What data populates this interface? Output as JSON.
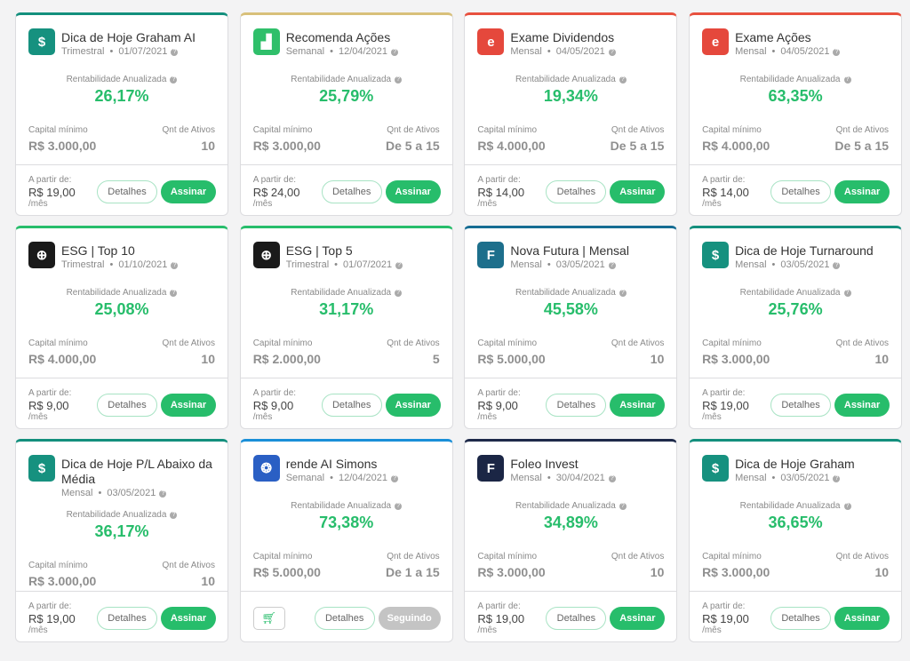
{
  "labels": {
    "rent": "Rentabilidade Anualizada",
    "capital": "Capital mínimo",
    "qnt": "Qnt de Ativos",
    "from": "A partir de:",
    "per": "/mês",
    "details": "Detalhes",
    "subscribe": "Assinar",
    "following": "Seguindo"
  },
  "cards": [
    {
      "title": "Dica de Hoje Graham AI",
      "freq": "Trimestral",
      "date": "01/07/2021",
      "pct": "26,17%",
      "capital": "R$ 3.000,00",
      "qnt": "10",
      "price": "R$ 19,00",
      "color": "#138f7d",
      "icon": "dollar-cycle-icon",
      "iconbg": "#16917f",
      "glyph": "$"
    },
    {
      "title": "Recomenda Ações",
      "freq": "Semanal",
      "date": "12/04/2021",
      "pct": "25,79%",
      "capital": "R$ 3.000,00",
      "qnt": "De 5 a 15",
      "price": "R$ 24,00",
      "color": "#d8c07a",
      "icon": "chart-icon",
      "iconbg": "#2fbf6a",
      "glyph": "▟"
    },
    {
      "title": "Exame Dividendos",
      "freq": "Mensal",
      "date": "04/05/2021",
      "pct": "19,34%",
      "capital": "R$ 4.000,00",
      "qnt": "De 5 a 15",
      "price": "R$ 14,00",
      "color": "#e8513f",
      "icon": "exame-logo-icon",
      "iconbg": "#e5483c",
      "glyph": "e"
    },
    {
      "title": "Exame Ações",
      "freq": "Mensal",
      "date": "04/05/2021",
      "pct": "63,35%",
      "capital": "R$ 4.000,00",
      "qnt": "De 5 a 15",
      "price": "R$ 14,00",
      "color": "#e8513f",
      "icon": "exame-logo-icon",
      "iconbg": "#e5483c",
      "glyph": "e"
    },
    {
      "title": "ESG | Top 10",
      "freq": "Trimestral",
      "date": "01/10/2021",
      "pct": "25,08%",
      "capital": "R$ 4.000,00",
      "qnt": "10",
      "price": "R$ 9,00",
      "color": "#27bd6b",
      "icon": "globe-icon",
      "iconbg": "#1a1a1a",
      "glyph": "⊕"
    },
    {
      "title": "ESG | Top 5",
      "freq": "Trimestral",
      "date": "01/07/2021",
      "pct": "31,17%",
      "capital": "R$ 2.000,00",
      "qnt": "5",
      "price": "R$ 9,00",
      "color": "#27bd6b",
      "icon": "globe-icon",
      "iconbg": "#1a1a1a",
      "glyph": "⊕"
    },
    {
      "title": "Nova Futura | Mensal",
      "freq": "Mensal",
      "date": "03/05/2021",
      "pct": "45,58%",
      "capital": "R$ 5.000,00",
      "qnt": "10",
      "price": "R$ 9,00",
      "color": "#156c93",
      "icon": "nova-futura-logo-icon",
      "iconbg": "#1d6f8c",
      "glyph": "F"
    },
    {
      "title": "Dica de Hoje Turnaround",
      "freq": "Mensal",
      "date": "03/05/2021",
      "pct": "25,76%",
      "capital": "R$ 3.000,00",
      "qnt": "10",
      "price": "R$ 19,00",
      "color": "#138f7d",
      "icon": "dollar-cycle-icon",
      "iconbg": "#16917f",
      "glyph": "$"
    },
    {
      "title": "Dica de Hoje P/L Abaixo da Média",
      "freq": "Mensal",
      "date": "03/05/2021",
      "pct": "36,17%",
      "capital": "R$ 3.000,00",
      "qnt": "10",
      "price": "R$ 19,00",
      "color": "#138f7d",
      "icon": "dollar-cycle-icon",
      "iconbg": "#16917f",
      "glyph": "$"
    },
    {
      "title": "rende AI Simons",
      "freq": "Semanal",
      "date": "12/04/2021",
      "pct": "73,38%",
      "capital": "R$ 5.000,00",
      "qnt": "De 1 a 15",
      "following": true,
      "color": "#1a8fd8",
      "icon": "brain-icon",
      "iconbg": "#2a5fc4",
      "glyph": "❂"
    },
    {
      "title": "Foleo Invest",
      "freq": "Mensal",
      "date": "30/04/2021",
      "pct": "34,89%",
      "capital": "R$ 3.000,00",
      "qnt": "10",
      "price": "R$ 19,00",
      "color": "#1e2a4a",
      "icon": "foleo-logo-icon",
      "iconbg": "#1b2645",
      "glyph": "F"
    },
    {
      "title": "Dica de Hoje Graham",
      "freq": "Mensal",
      "date": "03/05/2021",
      "pct": "36,65%",
      "capital": "R$ 3.000,00",
      "qnt": "10",
      "price": "R$ 19,00",
      "color": "#138f7d",
      "icon": "dollar-cycle-icon",
      "iconbg": "#16917f",
      "glyph": "$"
    }
  ]
}
